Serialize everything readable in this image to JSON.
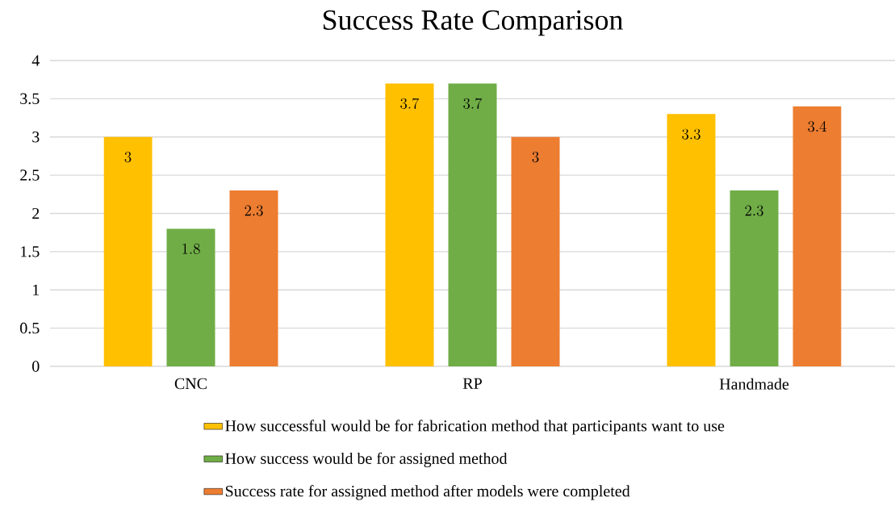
{
  "chart_data": {
    "type": "bar",
    "title": "Success Rate Comparison",
    "categories": [
      "CNC",
      "RP",
      "Handmade"
    ],
    "series": [
      {
        "name": "How successful would be for fabrication method that participants want to use",
        "color": "#ffc000",
        "values": [
          3,
          3.7,
          3.3
        ]
      },
      {
        "name": "How success would be for assigned method",
        "color": "#70ad47",
        "values": [
          1.8,
          3.7,
          2.3
        ]
      },
      {
        "name": "Success rate for assigned method after models were completed",
        "color": "#ed7d31",
        "values": [
          2.3,
          3,
          3.4
        ]
      }
    ],
    "ylim": [
      0,
      4
    ],
    "yticks": [
      0,
      0.5,
      1,
      1.5,
      2,
      2.5,
      3,
      3.5,
      4
    ],
    "grid": "y",
    "legend": "bottom",
    "data_labels": true
  }
}
